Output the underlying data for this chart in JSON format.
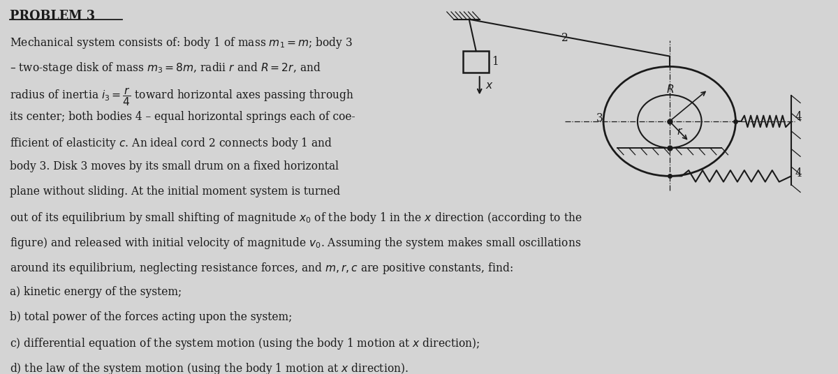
{
  "bg_color": "#d4d4d4",
  "text_color": "#1a1a1a",
  "fig_width": 12.0,
  "fig_height": 5.36,
  "title": "PROBLEM 3",
  "line1": "Mechanical system consists of: body 1 of mass $m_1=m$; body 3",
  "line2": "– two-stage disk of mass $m_3=8m$, radii $r$ and $R=2r$, and",
  "line3": "radius of inertia $i_3=\\dfrac{r}{4}$ toward horizontal axes passing through",
  "line4": "its center; both bodies 4 – equal horizontal springs each of coe-",
  "line5": "fficient of elasticity $c$. An ideal cord 2 connects body 1 and",
  "line6": "body 3. Disk 3 moves by its small drum on a fixed horizontal",
  "line7": "plane without sliding. At the initial moment system is turned",
  "line8": "out of its equilibrium by small shifting of magnitude $x_0$ of the body 1 in the $x$ direction (according to the",
  "line9": "figure) and released with initial velocity of magnitude $v_0$. Assuming the system makes small oscillations",
  "line10": "around its equilibrium, neglecting resistance forces, and $m, r, c$ are positive constants, find:",
  "line_a": "a) kinetic energy of the system;",
  "line_b": "b) total power of the forces acting upon the system;",
  "line_c": "c) differential equation of the system motion (using the body 1 motion at $x$ direction);",
  "line_d": "d) the law of the system motion (using the body 1 motion at $x$ direction)."
}
